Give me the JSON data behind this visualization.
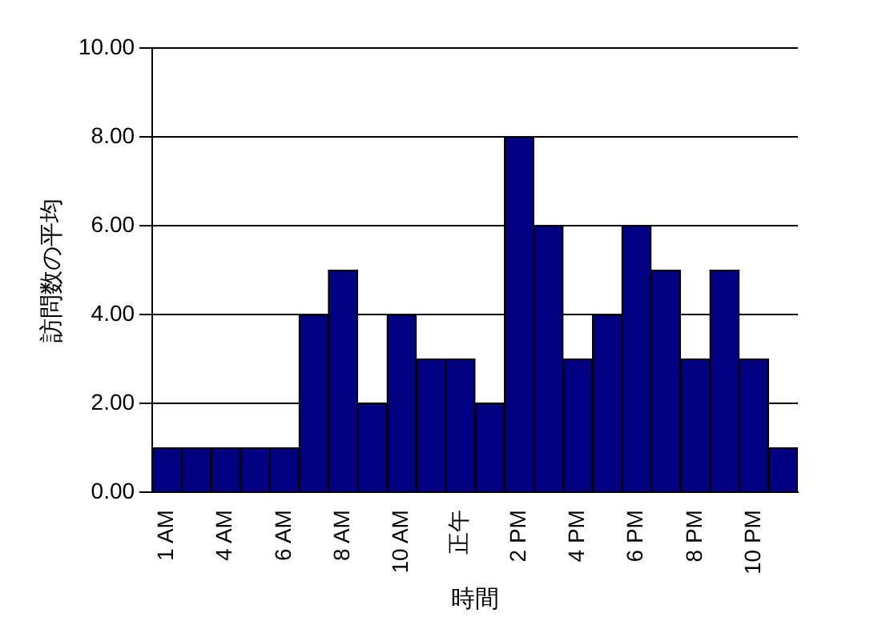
{
  "chart_data": {
    "type": "bar",
    "xlabel": "時間",
    "ylabel": "訪問数の平均",
    "categories": [
      "1 AM",
      null,
      "4 AM",
      null,
      "6 AM",
      null,
      "8 AM",
      null,
      "10 AM",
      null,
      "正午",
      null,
      "2 PM",
      null,
      "4 PM",
      null,
      "6 PM",
      null,
      "8 PM",
      null,
      "10 PM",
      null
    ],
    "values": [
      1,
      1,
      1,
      1,
      1,
      4,
      5,
      2,
      4,
      3,
      3,
      2,
      8,
      6,
      3,
      4,
      6,
      5,
      3,
      5,
      3,
      1
    ],
    "color": "#000080",
    "ylim": [
      0,
      10
    ],
    "yticks": [
      {
        "value": 0,
        "label": "0.00"
      },
      {
        "value": 2,
        "label": "2.00"
      },
      {
        "value": 4,
        "label": "4.00"
      },
      {
        "value": 6,
        "label": "6.00"
      },
      {
        "value": 8,
        "label": "8.00"
      },
      {
        "value": 10,
        "label": "10.00"
      }
    ],
    "grid": "y"
  }
}
